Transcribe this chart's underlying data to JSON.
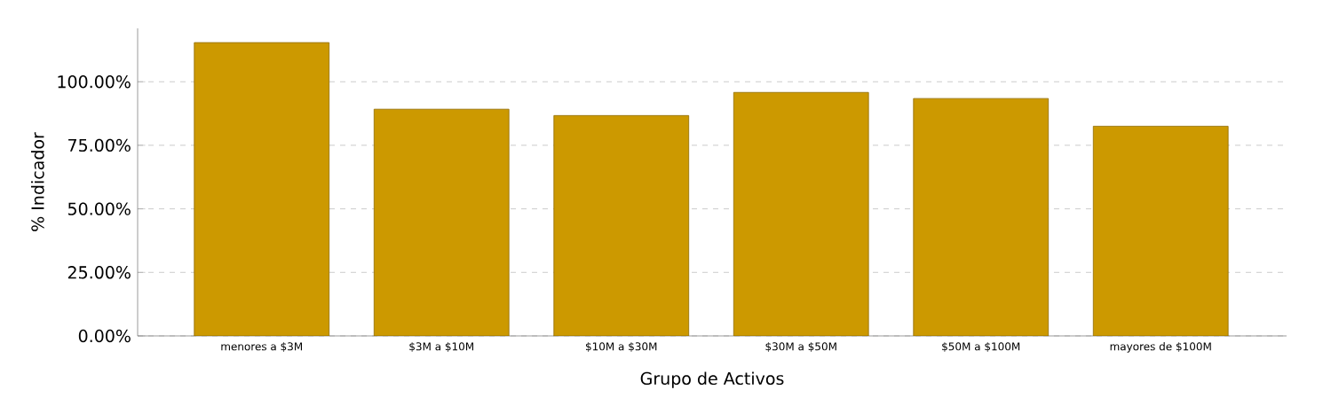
{
  "chart_data": {
    "type": "bar",
    "xlabel": "Grupo de Activos",
    "ylabel": "% Indicador",
    "categories": [
      "menores a $3M",
      "$3M a $10M",
      "$10M a $30M",
      "$30M a $50M",
      "$50M a $100M",
      "mayores de $100M"
    ],
    "values": [
      115.4,
      89.2,
      86.7,
      95.8,
      93.4,
      82.5
    ],
    "color": "#cc9900",
    "ylim": [
      0,
      121
    ],
    "yticks": [
      {
        "value": 0,
        "label": "0.00%"
      },
      {
        "value": 25,
        "label": "25.00%"
      },
      {
        "value": 50,
        "label": "50.00%"
      },
      {
        "value": 75,
        "label": "75.00%"
      },
      {
        "value": 100,
        "label": "100.00%"
      }
    ],
    "grid": "y"
  }
}
